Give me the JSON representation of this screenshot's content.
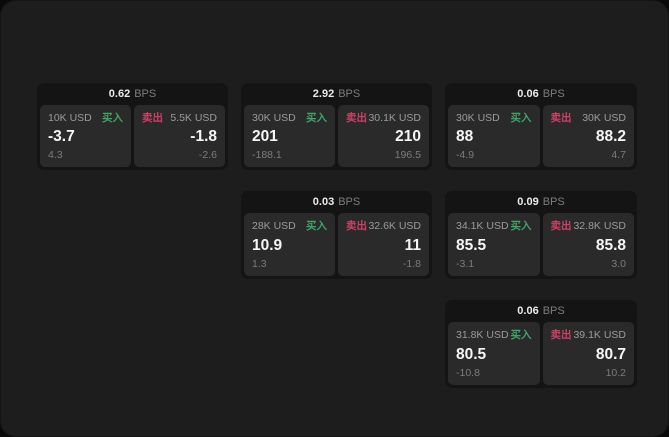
{
  "labels": {
    "buy": "买入",
    "sell": "卖出",
    "bps_unit": "BPS"
  },
  "colors": {
    "buy_green": "#3fa466",
    "sell_red": "#cd4066",
    "window_bg": "#1d1d1d",
    "card_bg": "#141414",
    "pane_bg": "#2a2a2a"
  },
  "cards": [
    {
      "bps": "0.62",
      "buy": {
        "amount": "10K USD",
        "main": "-3.7",
        "sub": "4.3"
      },
      "sell": {
        "amount": "5.5K USD",
        "main": "-1.8",
        "sub": "-2.6"
      }
    },
    {
      "bps": "2.92",
      "buy": {
        "amount": "30K USD",
        "main": "201",
        "sub": "-188.1"
      },
      "sell": {
        "amount": "30.1K USD",
        "main": "210",
        "sub": "196.5"
      }
    },
    {
      "bps": "0.06",
      "buy": {
        "amount": "30K USD",
        "main": "88",
        "sub": "-4.9"
      },
      "sell": {
        "amount": "30K USD",
        "main": "88.2",
        "sub": "4.7"
      }
    },
    {
      "bps": "0.03",
      "buy": {
        "amount": "28K USD",
        "main": "10.9",
        "sub": "1.3"
      },
      "sell": {
        "amount": "32.6K USD",
        "main": "11",
        "sub": "-1.8"
      }
    },
    {
      "bps": "0.09",
      "buy": {
        "amount": "34.1K USD",
        "main": "85.5",
        "sub": "-3.1"
      },
      "sell": {
        "amount": "32.8K USD",
        "main": "85.8",
        "sub": "3.0"
      }
    },
    {
      "bps": "0.06",
      "buy": {
        "amount": "31.8K USD",
        "main": "80.5",
        "sub": "-10.8"
      },
      "sell": {
        "amount": "39.1K USD",
        "main": "80.7",
        "sub": "10.2"
      }
    }
  ]
}
